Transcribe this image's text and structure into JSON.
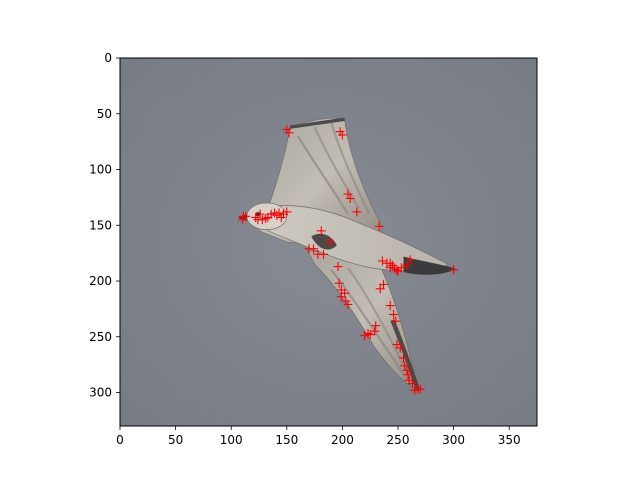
{
  "figure": {
    "image_extent": {
      "xlim": [
        0,
        375
      ],
      "ylim": [
        330,
        0
      ]
    },
    "x_ticks": [
      "0",
      "50",
      "100",
      "150",
      "200",
      "250",
      "300",
      "350"
    ],
    "y_ticks": [
      "0",
      "50",
      "100",
      "150",
      "200",
      "250",
      "300"
    ],
    "marker": {
      "symbol": "+",
      "color": "#ff0000"
    },
    "background_color": "#7c818a",
    "subject": "gull-in-flight",
    "keypoints": [
      [
        110,
        145
      ],
      [
        111,
        142
      ],
      [
        113,
        142
      ],
      [
        122,
        143
      ],
      [
        124,
        145
      ],
      [
        126,
        140
      ],
      [
        128,
        145
      ],
      [
        131,
        144
      ],
      [
        133,
        143
      ],
      [
        136,
        140
      ],
      [
        139,
        139
      ],
      [
        141,
        141
      ],
      [
        143,
        139
      ],
      [
        145,
        143
      ],
      [
        147,
        140
      ],
      [
        150,
        138
      ],
      [
        150,
        64
      ],
      [
        152,
        67
      ],
      [
        198,
        66
      ],
      [
        200,
        69
      ],
      [
        205,
        122
      ],
      [
        207,
        126
      ],
      [
        213,
        138
      ],
      [
        181,
        155
      ],
      [
        170,
        171
      ],
      [
        174,
        171
      ],
      [
        178,
        176
      ],
      [
        183,
        176
      ],
      [
        189,
        165
      ],
      [
        196,
        187
      ],
      [
        197,
        202
      ],
      [
        199,
        208
      ],
      [
        199,
        214
      ],
      [
        202,
        211
      ],
      [
        203,
        218
      ],
      [
        205,
        221
      ],
      [
        220,
        249
      ],
      [
        223,
        247
      ],
      [
        225,
        248
      ],
      [
        229,
        245
      ],
      [
        230,
        240
      ],
      [
        233,
        151
      ],
      [
        234,
        207
      ],
      [
        237,
        203
      ],
      [
        236,
        182
      ],
      [
        240,
        184
      ],
      [
        243,
        184
      ],
      [
        243,
        188
      ],
      [
        245,
        186
      ],
      [
        247,
        189
      ],
      [
        249,
        190
      ],
      [
        250,
        191
      ],
      [
        253,
        188
      ],
      [
        258,
        186
      ],
      [
        261,
        181
      ],
      [
        243,
        222
      ],
      [
        246,
        230
      ],
      [
        248,
        236
      ],
      [
        249,
        257
      ],
      [
        252,
        260
      ],
      [
        255,
        269
      ],
      [
        256,
        276
      ],
      [
        258,
        280
      ],
      [
        259,
        284
      ],
      [
        260,
        289
      ],
      [
        263,
        292
      ],
      [
        265,
        298
      ],
      [
        268,
        297
      ],
      [
        270,
        297
      ],
      [
        300,
        190
      ]
    ]
  }
}
